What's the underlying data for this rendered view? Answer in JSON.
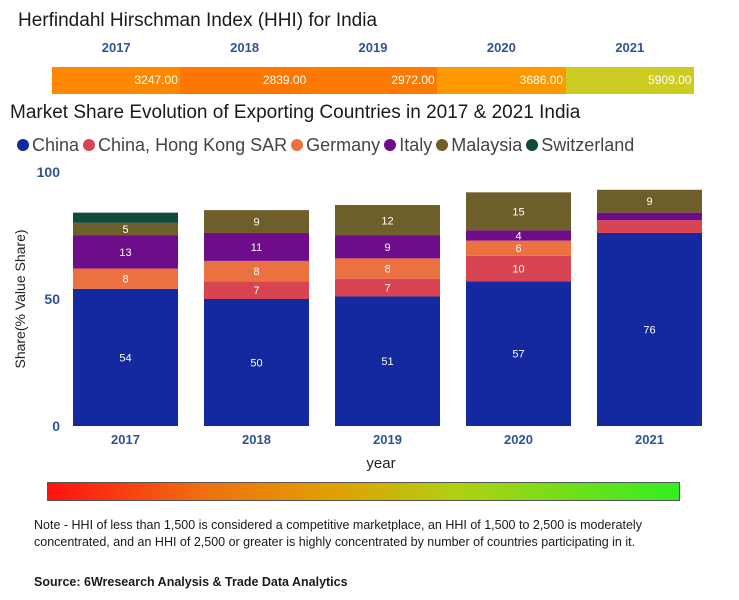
{
  "hhi": {
    "title": "Herfindahl Hirschman Index (HHI) for India",
    "entries": [
      {
        "year": "2017",
        "value": "3247.00",
        "color": "#ff8800"
      },
      {
        "year": "2018",
        "value": "2839.00",
        "color": "#ff7700"
      },
      {
        "year": "2019",
        "value": "2972.00",
        "color": "#ff7a00"
      },
      {
        "year": "2020",
        "value": "3686.00",
        "color": "#ff9900"
      },
      {
        "year": "2021",
        "value": "5909.00",
        "color": "#cccc22"
      }
    ]
  },
  "chart_data": {
    "type": "bar",
    "stacked": true,
    "title": "Market Share Evolution of Exporting Countries in 2017 & 2021 India",
    "xlabel": "year",
    "ylabel": "Share(% Value Share)",
    "ylim": [
      0,
      100
    ],
    "yticks": [
      "0",
      "50",
      "100"
    ],
    "categories": [
      "2017",
      "2018",
      "2019",
      "2020",
      "2021"
    ],
    "series": [
      {
        "name": "China",
        "color": "#1428a0",
        "values": [
          54,
          50,
          51,
          57,
          76
        ],
        "labels": [
          "54",
          "50",
          "51",
          "57",
          "76"
        ]
      },
      {
        "name": "China, Hong Kong SAR",
        "color": "#d94452",
        "values": [
          0,
          7,
          7,
          10,
          5
        ],
        "labels": [
          "",
          "7",
          "7",
          "10",
          ""
        ]
      },
      {
        "name": "Germany",
        "color": "#eb7140",
        "values": [
          8,
          8,
          8,
          6,
          0
        ],
        "labels": [
          "8",
          "8",
          "8",
          "6",
          ""
        ]
      },
      {
        "name": "Italy",
        "color": "#6f0c8c",
        "values": [
          13,
          11,
          9,
          4,
          3
        ],
        "labels": [
          "13",
          "11",
          "9",
          "4",
          ""
        ]
      },
      {
        "name": "Malaysia",
        "color": "#6e5e2a",
        "values": [
          5,
          9,
          12,
          15,
          9
        ],
        "labels": [
          "5",
          "9",
          "12",
          "15",
          "9"
        ]
      },
      {
        "name": "Switzerland",
        "color": "#0e4a3e",
        "values": [
          4,
          0,
          0,
          0,
          0
        ],
        "labels": [
          "",
          "",
          "",
          "",
          ""
        ]
      }
    ],
    "legend_position": "top"
  },
  "footer": {
    "note": "Note - HHI of less than 1,500 is considered a competitive marketplace, an HHI of 1,500 to 2,500 is moderately concentrated, and an HHI of 2,500 or greater is highly concentrated by number of countries participating in it.",
    "source": "Source: 6Wresearch Analysis & Trade Data Analytics"
  }
}
